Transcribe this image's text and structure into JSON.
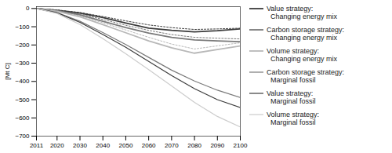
{
  "chart_data": {
    "type": "line",
    "x": [
      2011,
      2020,
      2030,
      2040,
      2050,
      2060,
      2070,
      2080,
      2090,
      2100
    ],
    "ylabel": "[Mt C]",
    "xlim": [
      2011,
      2100
    ],
    "xticks": [
      2011,
      2020,
      2030,
      2040,
      2050,
      2060,
      2070,
      2080,
      2090,
      2100
    ],
    "ylim": [
      -700,
      10
    ],
    "yticks": [
      0,
      -100,
      -200,
      -300,
      -400,
      -500,
      -600,
      -700
    ],
    "grid": false,
    "legend": "right",
    "series": [
      {
        "name": "Value strategy:\n  Changing energy mix",
        "color": "#3c3c3c",
        "line_style": "solid",
        "values": [
          0,
          -10,
          -25,
          -50,
          -80,
          -108,
          -120,
          -128,
          -122,
          -112
        ]
      },
      {
        "name": "Carbon storage strategy:\n  Changing energy mix",
        "color": "#7a7a7a",
        "line_style": "solid",
        "values": [
          0,
          -12,
          -35,
          -70,
          -105,
          -135,
          -158,
          -172,
          -178,
          -182
        ]
      },
      {
        "name": "Volume strategy:\n  Changing energy mix",
        "color": "#b8b8b8",
        "line_style": "solid",
        "values": [
          0,
          -15,
          -45,
          -88,
          -133,
          -178,
          -215,
          -245,
          -225,
          -205
        ]
      },
      {
        "name": "Carbon storage strategy:\n  Marginal fossil",
        "color": "#7a7a7a",
        "line_style": "solid",
        "values": [
          0,
          -22,
          -70,
          -132,
          -198,
          -268,
          -338,
          -398,
          -448,
          -488
        ]
      },
      {
        "name": "Value strategy:\n  Marginal fossil",
        "color": "#3c3c3c",
        "line_style": "solid",
        "values": [
          0,
          -24,
          -76,
          -143,
          -213,
          -290,
          -368,
          -440,
          -500,
          -543
        ]
      },
      {
        "name": "Volume strategy:\n  Marginal fossil",
        "color": "#cccccc",
        "line_style": "solid",
        "values": [
          0,
          -27,
          -88,
          -165,
          -248,
          -335,
          -425,
          -515,
          -592,
          -650
        ]
      },
      {
        "color": "#3c3c3c",
        "line_style": "dotted",
        "values": [
          0,
          -8,
          -22,
          -44,
          -68,
          -90,
          -105,
          -115,
          -112,
          -108
        ]
      },
      {
        "color": "#7a7a7a",
        "line_style": "dotted",
        "values": [
          0,
          -10,
          -30,
          -60,
          -92,
          -120,
          -143,
          -158,
          -163,
          -167
        ]
      },
      {
        "color": "#b8b8b8",
        "line_style": "dotted",
        "values": [
          0,
          -13,
          -40,
          -78,
          -118,
          -158,
          -195,
          -222,
          -205,
          -188
        ]
      }
    ]
  }
}
